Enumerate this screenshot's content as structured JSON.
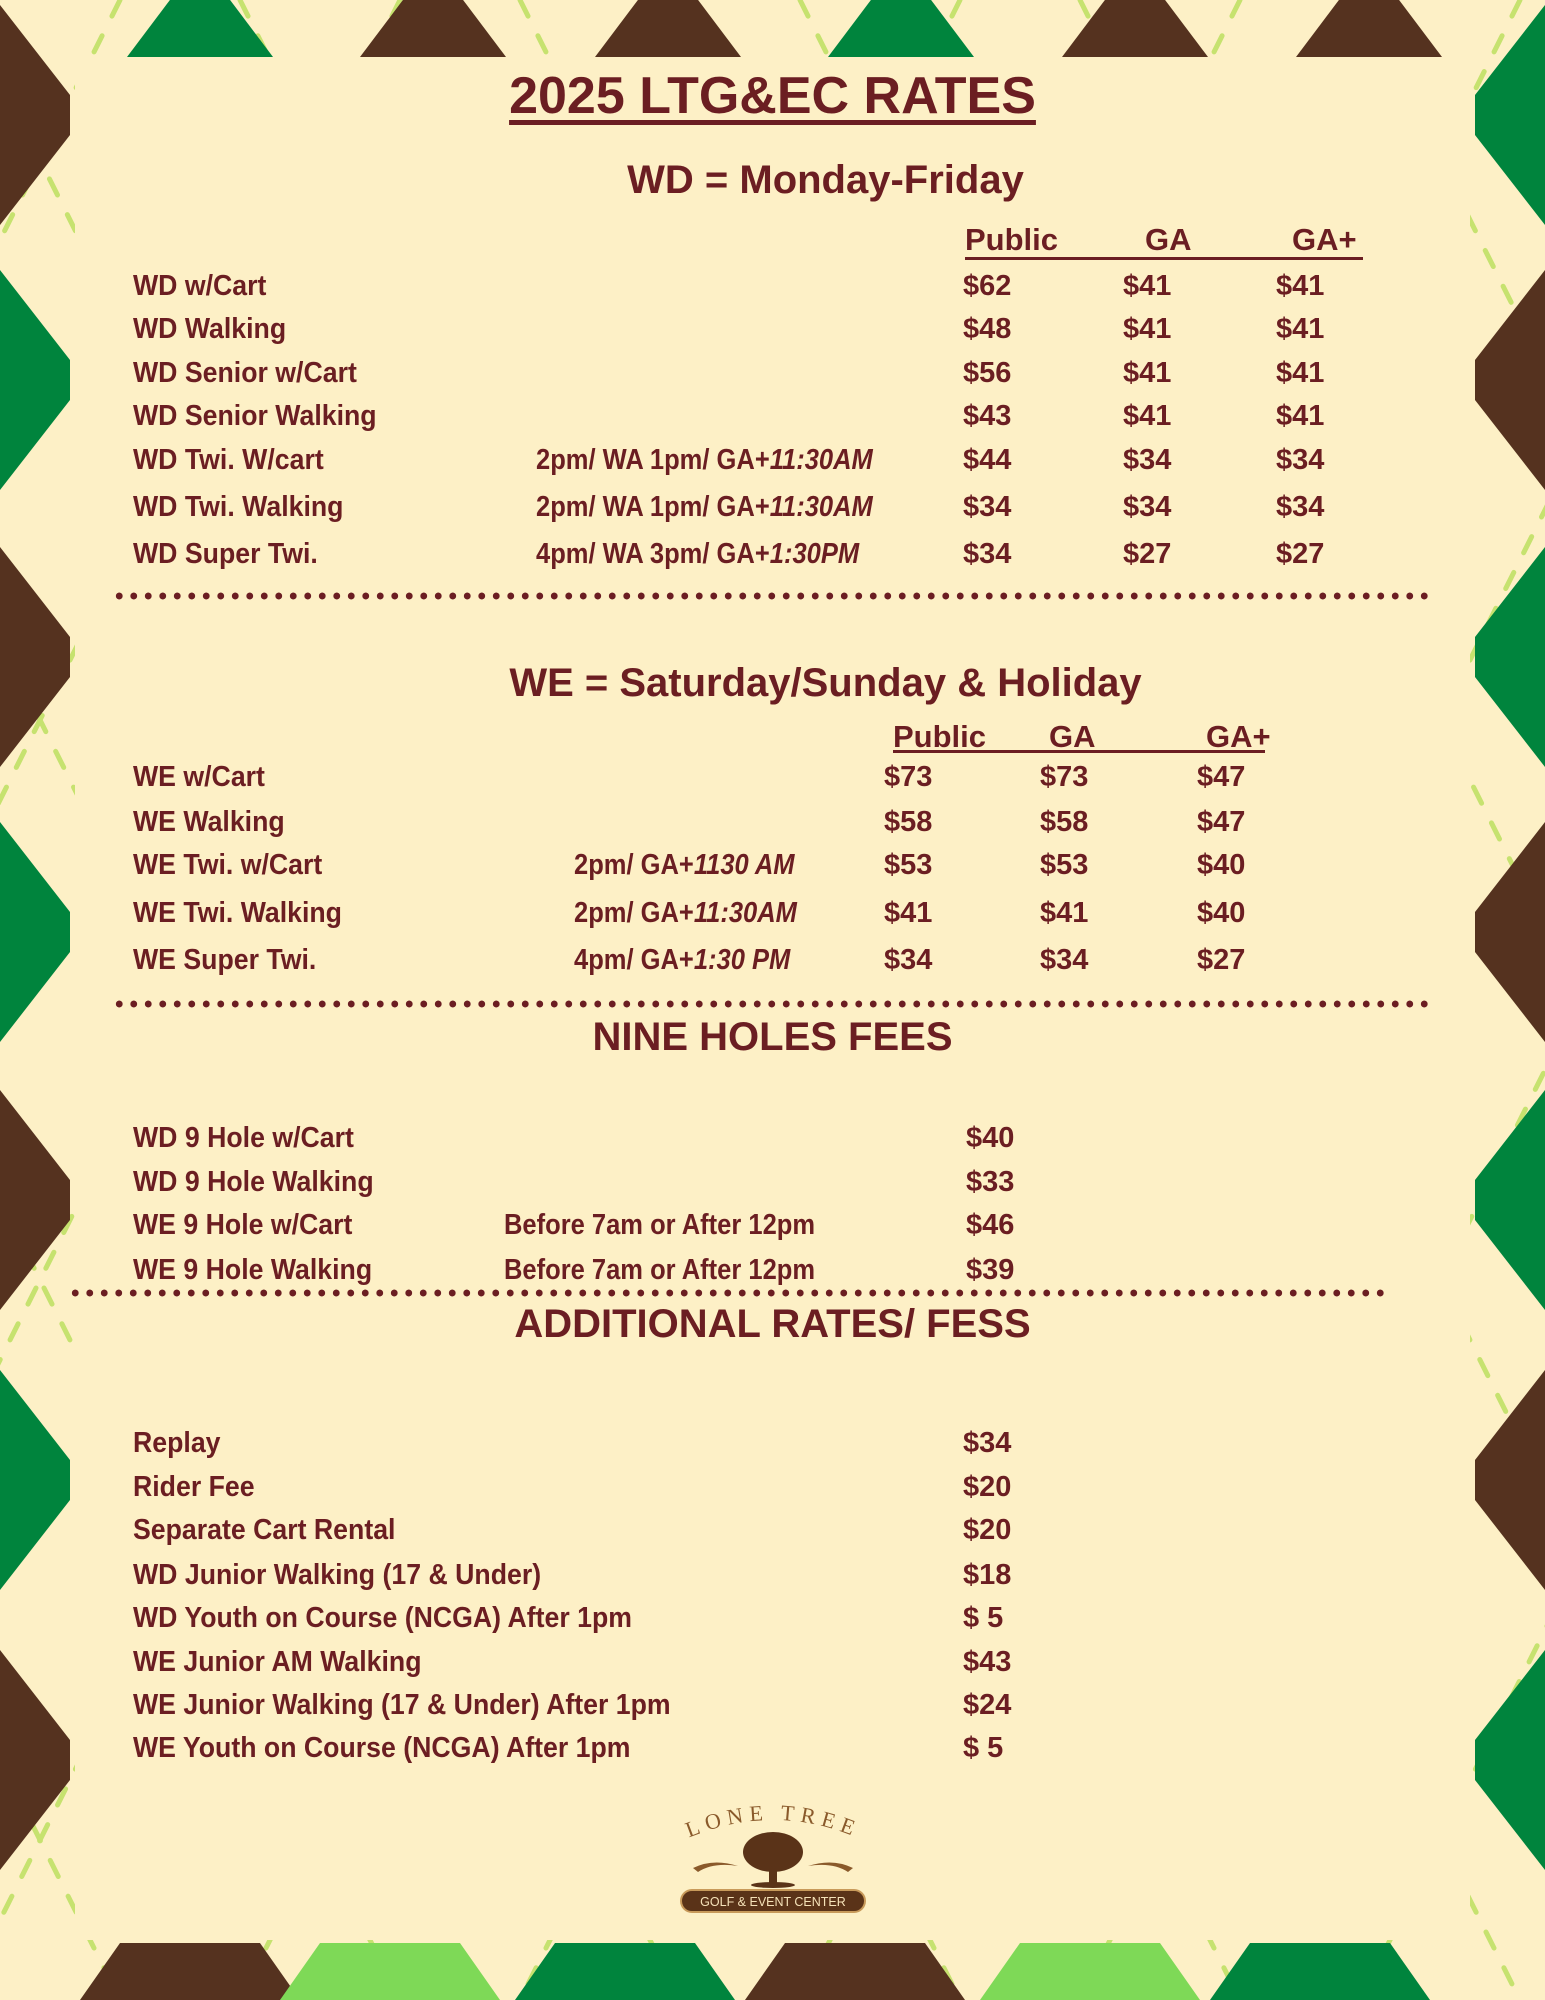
{
  "colors": {
    "background": "#fdf0c6",
    "text": "#6b1e22",
    "brown": "#55321f",
    "green": "#00843d",
    "light_green": "#7ed957",
    "dash": "#c6e26f"
  },
  "title": "2025 LTG&EC RATES",
  "weekday": {
    "heading": "WD = Monday-Friday",
    "columns": [
      "Public",
      "GA",
      "GA+"
    ],
    "rows": [
      {
        "label": "WD w/Cart",
        "note": "",
        "note_italic": "",
        "prices": [
          "$62",
          "$41",
          "$41"
        ]
      },
      {
        "label": "WD Walking",
        "note": "",
        "note_italic": "",
        "prices": [
          "$48",
          "$41",
          "$41"
        ]
      },
      {
        "label": "WD Senior w/Cart",
        "note": "",
        "note_italic": "",
        "prices": [
          "$56",
          "$41",
          "$41"
        ]
      },
      {
        "label": "WD Senior Walking",
        "note": "",
        "note_italic": "",
        "prices": [
          "$43",
          "$41",
          "$41"
        ]
      },
      {
        "label": "WD Twi. W/cart",
        "note": "2pm/ WA 1pm/ GA+",
        "note_italic": "11:30AM",
        "prices": [
          "$44",
          "$34",
          "$34"
        ]
      },
      {
        "label": "WD Twi. Walking",
        "note": "2pm/ WA 1pm/ GA+",
        "note_italic": "11:30AM",
        "prices": [
          "$34",
          "$34",
          "$34"
        ]
      },
      {
        "label": "WD Super Twi.",
        "note": "4pm/ WA 3pm/ GA+",
        "note_italic": "1:30PM",
        "prices": [
          "$34",
          "$27",
          "$27"
        ]
      }
    ]
  },
  "weekend": {
    "heading": "WE = Saturday/Sunday & Holiday",
    "columns": [
      "Public",
      "GA",
      "GA+"
    ],
    "rows": [
      {
        "label": "WE w/Cart",
        "note": "",
        "note_italic": "",
        "prices": [
          "$73",
          "$73",
          "$47"
        ]
      },
      {
        "label": "WE Walking",
        "note": "",
        "note_italic": "",
        "prices": [
          "$58",
          "$58",
          "$47"
        ]
      },
      {
        "label": "WE Twi. w/Cart",
        "note": "2pm/ GA+",
        "note_italic": "1130 AM",
        "prices": [
          "$53",
          "$53",
          "$40"
        ]
      },
      {
        "label": "WE Twi. Walking",
        "note": "2pm/ GA+",
        "note_italic": "11:30AM",
        "prices": [
          "$41",
          "$41",
          "$40"
        ]
      },
      {
        "label": "WE Super Twi.",
        "note": "4pm/ GA+",
        "note_italic": "1:30 PM",
        "prices": [
          "$34",
          "$34",
          "$27"
        ]
      }
    ]
  },
  "nine_holes": {
    "heading": "NINE HOLES FEES",
    "rows": [
      {
        "label": "WD 9 Hole w/Cart",
        "note": "",
        "price": "$40"
      },
      {
        "label": "WD 9 Hole Walking",
        "note": "",
        "price": "$33"
      },
      {
        "label": "WE 9 Hole w/Cart",
        "note": "Before 7am or After 12pm",
        "price": "$46"
      },
      {
        "label": "WE 9 Hole Walking",
        "note": "Before 7am or After 12pm",
        "price": "$39"
      }
    ]
  },
  "additional": {
    "heading": "ADDITIONAL RATES/ FESS",
    "rows": [
      {
        "label": "Replay",
        "price": "$34"
      },
      {
        "label": "Rider Fee",
        "price": "$20"
      },
      {
        "label": "Separate Cart Rental",
        "price": "$20"
      },
      {
        "label": "WD Junior Walking (17 & Under)",
        "price": "$18"
      },
      {
        "label": "WD Youth on Course (NCGA) After 1pm",
        "price": "$ 5"
      },
      {
        "label": "WE Junior AM Walking",
        "price": "$43"
      },
      {
        "label": "WE Junior Walking (17 & Under) After 1pm",
        "price": "$24"
      },
      {
        "label": "WE Youth on Course (NCGA) After 1pm",
        "price": "$ 5"
      }
    ]
  },
  "logo": {
    "name": "LONE TREE",
    "tagline": "GOLF & EVENT CENTER",
    "icon": "tree-icon"
  }
}
